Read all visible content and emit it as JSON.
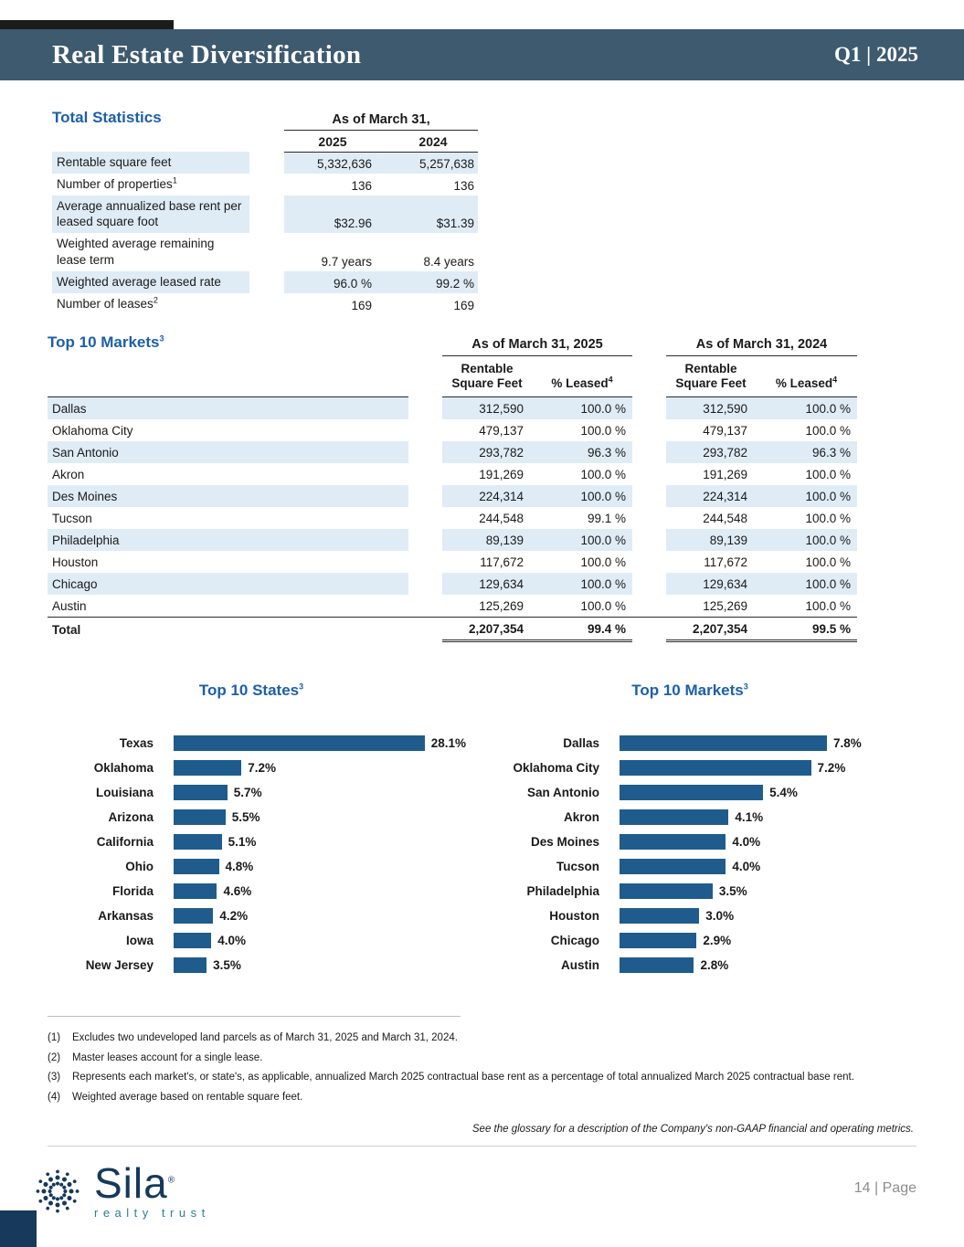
{
  "header": {
    "title": "Real Estate Diversification",
    "period": "Q1 | 2025"
  },
  "total_statistics": {
    "heading": "Total Statistics",
    "as_of_label": "As of March 31,",
    "year_cols": [
      "2025",
      "2024"
    ],
    "rows": [
      {
        "label": "Rentable square feet",
        "sup": "",
        "y2025": "5,332,636",
        "y2024": "5,257,638"
      },
      {
        "label": "Number of properties",
        "sup": "1",
        "y2025": "136",
        "y2024": "136"
      },
      {
        "label": "Average annualized base rent per leased square foot",
        "sup": "",
        "y2025": "$32.96",
        "y2024": "$31.39"
      },
      {
        "label": "Weighted average remaining lease term",
        "sup": "",
        "y2025": "9.7 years",
        "y2024": "8.4 years"
      },
      {
        "label": "Weighted average leased rate",
        "sup": "",
        "y2025": "96.0 %",
        "y2024": "99.2 %"
      },
      {
        "label": "Number of leases",
        "sup": "2",
        "y2025": "169",
        "y2024": "169"
      }
    ]
  },
  "top_markets_table": {
    "heading": "Top 10 Markets",
    "heading_sup": "3",
    "group_headers": [
      "As of March 31, 2025",
      "As of March 31, 2024"
    ],
    "sub_headers": {
      "rsf": "Rentable Square Feet",
      "leased": "% Leased",
      "leased_sup": "4"
    },
    "rows": [
      {
        "market": "Dallas",
        "rsf_2025": "312,590",
        "leased_2025": "100.0 %",
        "rsf_2024": "312,590",
        "leased_2024": "100.0 %"
      },
      {
        "market": "Oklahoma City",
        "rsf_2025": "479,137",
        "leased_2025": "100.0 %",
        "rsf_2024": "479,137",
        "leased_2024": "100.0 %"
      },
      {
        "market": "San Antonio",
        "rsf_2025": "293,782",
        "leased_2025": "96.3 %",
        "rsf_2024": "293,782",
        "leased_2024": "96.3 %"
      },
      {
        "market": "Akron",
        "rsf_2025": "191,269",
        "leased_2025": "100.0 %",
        "rsf_2024": "191,269",
        "leased_2024": "100.0 %"
      },
      {
        "market": "Des Moines",
        "rsf_2025": "224,314",
        "leased_2025": "100.0 %",
        "rsf_2024": "224,314",
        "leased_2024": "100.0 %"
      },
      {
        "market": "Tucson",
        "rsf_2025": "244,548",
        "leased_2025": "99.1 %",
        "rsf_2024": "244,548",
        "leased_2024": "100.0 %"
      },
      {
        "market": "Philadelphia",
        "rsf_2025": "89,139",
        "leased_2025": "100.0 %",
        "rsf_2024": "89,139",
        "leased_2024": "100.0 %"
      },
      {
        "market": "Houston",
        "rsf_2025": "117,672",
        "leased_2025": "100.0 %",
        "rsf_2024": "117,672",
        "leased_2024": "100.0 %"
      },
      {
        "market": "Chicago",
        "rsf_2025": "129,634",
        "leased_2025": "100.0 %",
        "rsf_2024": "129,634",
        "leased_2024": "100.0 %"
      },
      {
        "market": "Austin",
        "rsf_2025": "125,269",
        "leased_2025": "100.0 %",
        "rsf_2024": "125,269",
        "leased_2024": "100.0 %"
      }
    ],
    "total_row": {
      "market": "Total",
      "rsf_2025": "2,207,354",
      "leased_2025": "99.4 %",
      "rsf_2024": "2,207,354",
      "leased_2024": "99.5 %"
    }
  },
  "chart_data": [
    {
      "type": "bar",
      "orientation": "horizontal",
      "title": "Top 10 States",
      "title_sup": "3",
      "categories": [
        "Texas",
        "Oklahoma",
        "Louisiana",
        "Arizona",
        "California",
        "Ohio",
        "Florida",
        "Arkansas",
        "Iowa",
        "New Jersey"
      ],
      "values": [
        28.1,
        7.2,
        5.7,
        5.5,
        5.1,
        4.8,
        4.6,
        4.2,
        4.0,
        3.5
      ],
      "value_labels": [
        "28.1%",
        "7.2%",
        "5.7%",
        "5.5%",
        "5.1%",
        "4.8%",
        "4.6%",
        "4.2%",
        "4.0%",
        "3.5%"
      ],
      "xlim": [
        0,
        28.1
      ],
      "grid": false,
      "legend": false,
      "bar_color": "#1f5c8d"
    },
    {
      "type": "bar",
      "orientation": "horizontal",
      "title": "Top 10 Markets",
      "title_sup": "3",
      "categories": [
        "Dallas",
        "Oklahoma City",
        "San Antonio",
        "Akron",
        "Des Moines",
        "Tucson",
        "Philadelphia",
        "Houston",
        "Chicago",
        "Austin"
      ],
      "values": [
        7.8,
        7.2,
        5.4,
        4.1,
        4.0,
        4.0,
        3.5,
        3.0,
        2.9,
        2.8
      ],
      "value_labels": [
        "7.8%",
        "7.2%",
        "5.4%",
        "4.1%",
        "4.0%",
        "4.0%",
        "3.5%",
        "3.0%",
        "2.9%",
        "2.8%"
      ],
      "xlim": [
        0,
        7.8
      ],
      "grid": false,
      "legend": false,
      "bar_color": "#1f5c8d"
    }
  ],
  "footnotes": [
    {
      "num": "(1)",
      "text": "Excludes two undeveloped land parcels as of March 31, 2025 and March 31, 2024."
    },
    {
      "num": "(2)",
      "text": "Master leases account for a single lease."
    },
    {
      "num": "(3)",
      "text": "Represents each market's, or state's, as applicable, annualized March 2025 contractual base rent as a percentage of total annualized March 2025 contractual base rent."
    },
    {
      "num": "(4)",
      "text": "Weighted average based on rentable square feet."
    }
  ],
  "glossary_note": "See the glossary for a description of the Company's non-GAAP financial and operating metrics.",
  "footer": {
    "page_label": "14 | Page",
    "logo_text": "Sila",
    "logo_reg": "®",
    "logo_sub": "realty trust"
  },
  "colors": {
    "header_band": "#3d5a6e",
    "accent_blue": "#1d5fa8",
    "row_shade": "#dfecf6",
    "bar_fill": "#1f5c8d",
    "logo_navy": "#16395c"
  }
}
